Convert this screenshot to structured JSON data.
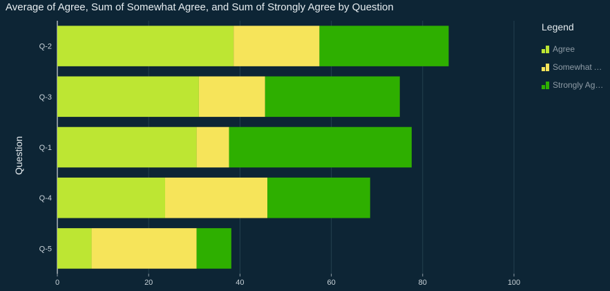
{
  "chart_data": {
    "type": "bar",
    "orientation": "horizontal",
    "stacked": true,
    "title": "Average of Agree, Sum of Somewhat Agree, and Sum of Strongly Agree by Question",
    "xlabel": "",
    "ylabel": "Question",
    "categories": [
      "Q-2",
      "Q-3",
      "Q-1",
      "Q-4",
      "Q-5"
    ],
    "series": [
      {
        "name": "Agree",
        "color": "#bde633",
        "values": [
          38.6,
          31.0,
          30.5,
          23.6,
          7.5
        ]
      },
      {
        "name": "Somewhat Agree",
        "color": "#f6e45a",
        "values": [
          18.8,
          14.5,
          7.1,
          22.4,
          23.0
        ]
      },
      {
        "name": "Strongly Agree",
        "color": "#2eaf00",
        "values": [
          28.3,
          29.5,
          40.0,
          22.5,
          7.6
        ]
      }
    ],
    "xlim": [
      0,
      100
    ],
    "xticks": [
      0,
      20,
      40,
      60,
      80,
      100
    ],
    "grid": true,
    "legend_title": "Legend",
    "legend_position": "right"
  }
}
